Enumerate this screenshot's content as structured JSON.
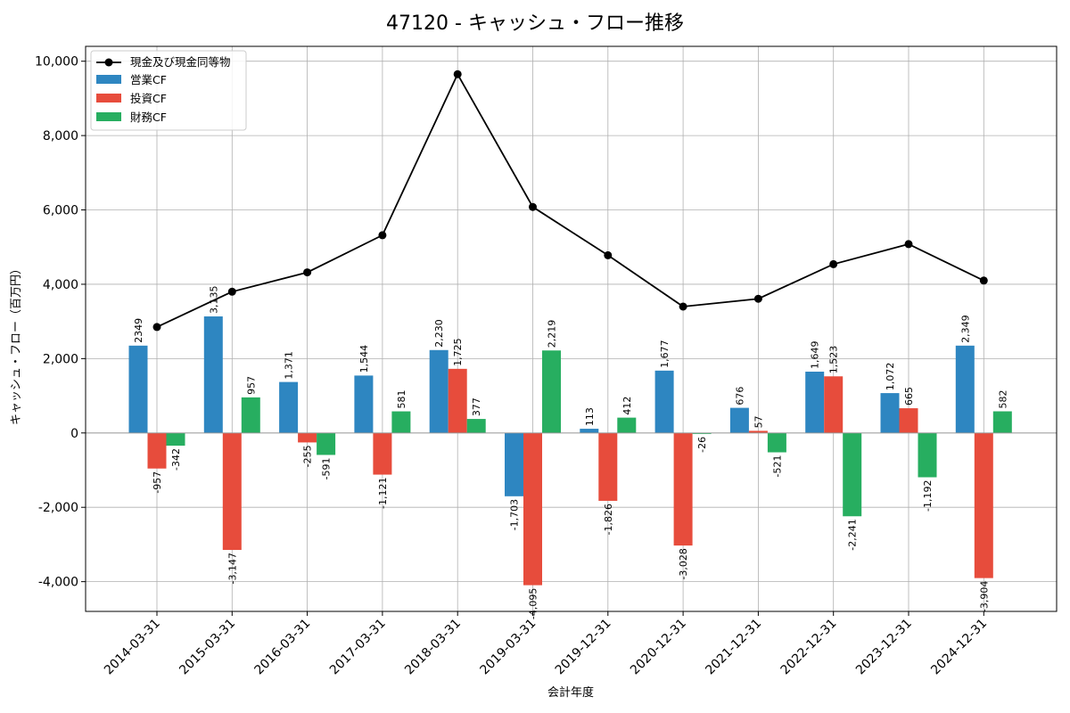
{
  "chart_data": {
    "type": "bar",
    "title": "47120 - キャッシュ・フロー推移",
    "xlabel": "会計年度",
    "ylabel": "キャッシュ・フロー（百万円）",
    "ylim": [
      -4800,
      10400
    ],
    "yticks": [
      -4000,
      -2000,
      0,
      2000,
      4000,
      6000,
      8000,
      10000
    ],
    "ytick_labels": [
      "-4,000",
      "-2,000",
      "0",
      "2,000",
      "4,000",
      "6,000",
      "8,000",
      "10,000"
    ],
    "grid": true,
    "legend_position": "top-left",
    "categories": [
      "2014-03-31",
      "2015-03-31",
      "2016-03-31",
      "2017-03-31",
      "2018-03-31",
      "2019-03-31",
      "2019-12-31",
      "2020-12-31",
      "2021-12-31",
      "2022-12-31",
      "2023-12-31",
      "2024-12-31"
    ],
    "series": [
      {
        "name": "営業CF",
        "color": "#2e86c1",
        "values": [
          2349,
          3135,
          1371,
          1544,
          2230,
          -1703,
          113,
          1677,
          676,
          1649,
          1072,
          2349
        ],
        "labels": [
          "2349",
          "3,135",
          "1,371",
          "1,544",
          "2,230",
          "-1,703",
          "113",
          "1,677",
          "676",
          "1,649",
          "1,072",
          "2,349"
        ]
      },
      {
        "name": "投資CF",
        "color": "#e74c3c",
        "values": [
          -957,
          -3147,
          -255,
          -1121,
          1725,
          -4095,
          -1826,
          -3028,
          57,
          1523,
          665,
          -3904
        ],
        "labels": [
          "-957",
          "-3,147",
          "-255",
          "-1,121",
          "1,725",
          "-4,095",
          "-1,826",
          "-3,028",
          "57",
          "1,523",
          "665",
          "-3,904"
        ]
      },
      {
        "name": "財務CF",
        "color": "#27ae60",
        "values": [
          -342,
          957,
          -591,
          581,
          377,
          2219,
          412,
          -26,
          -521,
          -2241,
          -1192,
          582
        ],
        "labels": [
          "-342",
          "957",
          "-591",
          "581",
          "377",
          "2,219",
          "412",
          "-26",
          "-521",
          "-2,241",
          "-1,192",
          "582"
        ]
      }
    ],
    "line": {
      "name": "現金及び現金同等物",
      "color": "#000000",
      "values": [
        2850,
        3800,
        4320,
        5320,
        9650,
        6080,
        4780,
        3400,
        3610,
        4540,
        5080,
        4100
      ]
    }
  }
}
